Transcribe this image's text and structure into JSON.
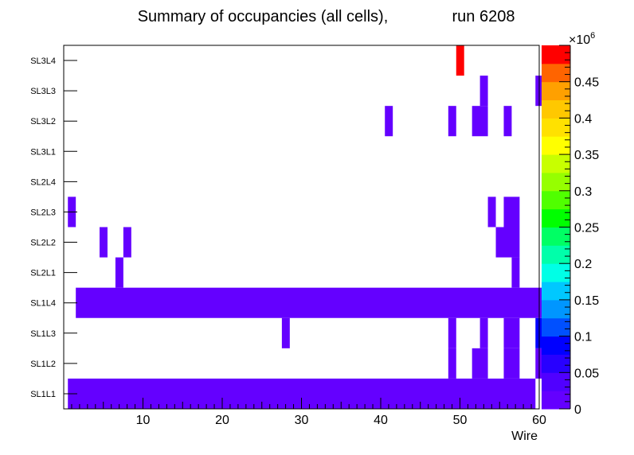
{
  "chart_data": {
    "type": "heatmap",
    "title_left": "Summary of occupancies (all cells),",
    "title_right": "run 6208",
    "xlabel": "Wire",
    "x_range": [
      0,
      60
    ],
    "x_ticks": [
      "10",
      "20",
      "30",
      "40",
      "50",
      "60"
    ],
    "y_categories": [
      "SL1L1",
      "SL1L2",
      "SL1L3",
      "SL1L4",
      "SL2L1",
      "SL2L2",
      "SL2L3",
      "SL2L4",
      "SL3L1",
      "SL3L2",
      "SL3L3",
      "SL3L4"
    ],
    "colorbar": {
      "min": 0,
      "max": 500000,
      "exponent_base": "×10",
      "exponent": "6",
      "tick_labels": [
        "0",
        "0.05",
        "0.1",
        "0.15",
        "0.2",
        "0.25",
        "0.3",
        "0.35",
        "0.4",
        "0.45"
      ],
      "colors": [
        "#6400ff",
        "#5000ff",
        "#2800ff",
        "#0000ff",
        "#0050ff",
        "#0096ff",
        "#00c8ff",
        "#00ffe6",
        "#00ffaa",
        "#00ff64",
        "#00ff00",
        "#50ff00",
        "#96ff00",
        "#c8ff00",
        "#ffff00",
        "#ffe100",
        "#ffc800",
        "#ffa000",
        "#ff6400",
        "#ff0000"
      ]
    },
    "cells": [
      {
        "layer": "SL1L1",
        "wire_from": 1,
        "wire_to": 59,
        "value": 5000
      },
      {
        "layer": "SL1L2",
        "wire_from": 49,
        "wire_to": 49,
        "value": 5000
      },
      {
        "layer": "SL1L2",
        "wire_from": 52,
        "wire_to": 53,
        "value": 5000
      },
      {
        "layer": "SL1L2",
        "wire_from": 56,
        "wire_to": 57,
        "value": 5000
      },
      {
        "layer": "SL1L2",
        "wire_from": 60,
        "wire_to": 60,
        "value": 5000
      },
      {
        "layer": "SL1L3",
        "wire_from": 28,
        "wire_to": 28,
        "value": 5000
      },
      {
        "layer": "SL1L3",
        "wire_from": 49,
        "wire_to": 49,
        "value": 5000
      },
      {
        "layer": "SL1L3",
        "wire_from": 53,
        "wire_to": 53,
        "value": 5000
      },
      {
        "layer": "SL1L3",
        "wire_from": 56,
        "wire_to": 57,
        "value": 5000
      },
      {
        "layer": "SL1L3",
        "wire_from": 60,
        "wire_to": 60,
        "value": 95000
      },
      {
        "layer": "SL1L4",
        "wire_from": 2,
        "wire_to": 60,
        "value": 5000
      },
      {
        "layer": "SL2L1",
        "wire_from": 7,
        "wire_to": 7,
        "value": 5000
      },
      {
        "layer": "SL2L1",
        "wire_from": 57,
        "wire_to": 57,
        "value": 5000
      },
      {
        "layer": "SL2L2",
        "wire_from": 5,
        "wire_to": 5,
        "value": 5000
      },
      {
        "layer": "SL2L2",
        "wire_from": 8,
        "wire_to": 8,
        "value": 5000
      },
      {
        "layer": "SL2L2",
        "wire_from": 55,
        "wire_to": 57,
        "value": 5000
      },
      {
        "layer": "SL2L3",
        "wire_from": 1,
        "wire_to": 1,
        "value": 5000
      },
      {
        "layer": "SL2L3",
        "wire_from": 54,
        "wire_to": 54,
        "value": 5000
      },
      {
        "layer": "SL2L3",
        "wire_from": 56,
        "wire_to": 57,
        "value": 5000
      },
      {
        "layer": "SL3L2",
        "wire_from": 41,
        "wire_to": 41,
        "value": 5000
      },
      {
        "layer": "SL3L2",
        "wire_from": 49,
        "wire_to": 49,
        "value": 5000
      },
      {
        "layer": "SL3L2",
        "wire_from": 52,
        "wire_to": 53,
        "value": 5000
      },
      {
        "layer": "SL3L2",
        "wire_from": 56,
        "wire_to": 56,
        "value": 5000
      },
      {
        "layer": "SL3L3",
        "wire_from": 53,
        "wire_to": 53,
        "value": 5000
      },
      {
        "layer": "SL3L3",
        "wire_from": 60,
        "wire_to": 60,
        "value": 5000
      },
      {
        "layer": "SL3L4",
        "wire_from": 50,
        "wire_to": 50,
        "value": 490000
      }
    ]
  }
}
